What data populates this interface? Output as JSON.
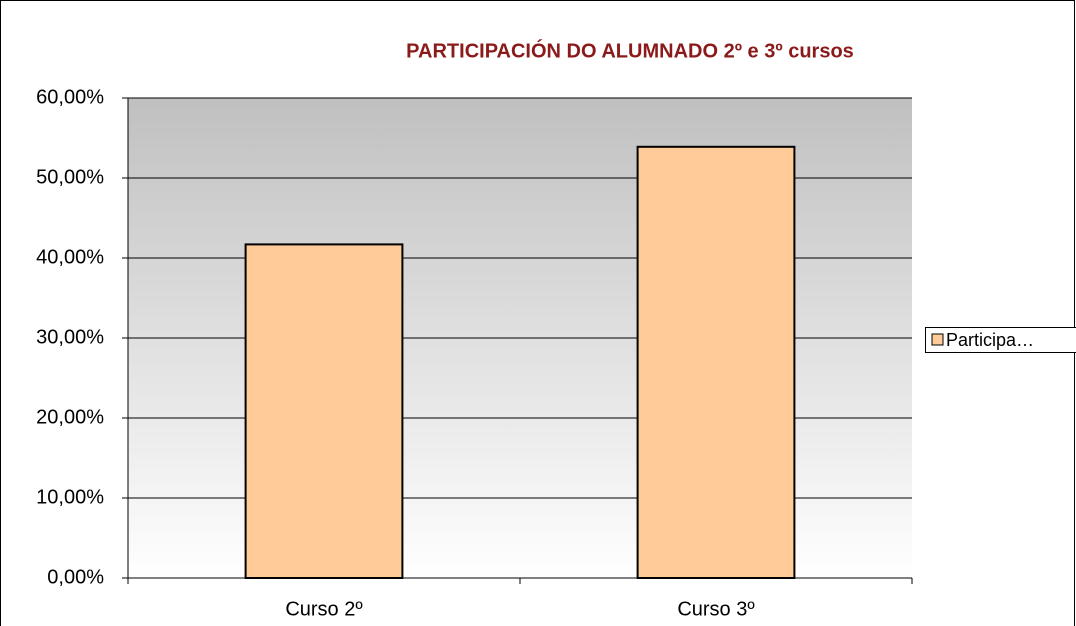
{
  "chart_data": {
    "type": "bar",
    "title": "PARTICIPACIÓN DO ALUMNADO 2º e 3º cursos",
    "categories": [
      "Curso 2º",
      "Curso 3º"
    ],
    "series": [
      {
        "name": "Participa…",
        "color": "#ffcc99",
        "values": [
          41.7,
          53.9
        ]
      }
    ],
    "ylim": [
      0,
      60
    ],
    "yticks": [
      {
        "value": 0,
        "label": "0,00%"
      },
      {
        "value": 10,
        "label": "10,00%"
      },
      {
        "value": 20,
        "label": "20,00%"
      },
      {
        "value": 30,
        "label": "30,00%"
      },
      {
        "value": 40,
        "label": "40,00%"
      },
      {
        "value": 50,
        "label": "50,00%"
      },
      {
        "value": 60,
        "label": "60,00%"
      }
    ],
    "grid": true,
    "legend": "right"
  }
}
